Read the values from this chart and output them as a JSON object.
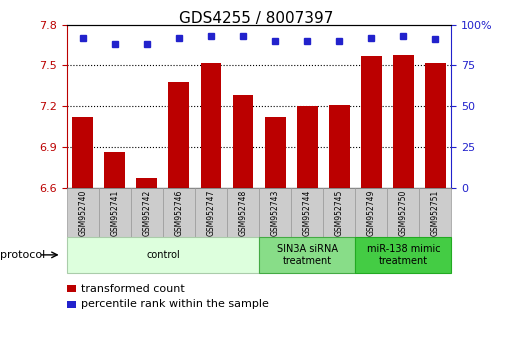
{
  "title": "GDS4255 / 8007397",
  "samples": [
    "GSM952740",
    "GSM952741",
    "GSM952742",
    "GSM952746",
    "GSM952747",
    "GSM952748",
    "GSM952743",
    "GSM952744",
    "GSM952745",
    "GSM952749",
    "GSM952750",
    "GSM952751"
  ],
  "transformed_count": [
    7.12,
    6.86,
    6.67,
    7.38,
    7.52,
    7.28,
    7.12,
    7.2,
    7.21,
    7.57,
    7.58,
    7.52
  ],
  "percentile_rank": [
    92,
    88,
    88,
    92,
    93,
    93,
    90,
    90,
    90,
    92,
    93,
    91
  ],
  "ylim_left": [
    6.6,
    7.8
  ],
  "ylim_right": [
    0,
    100
  ],
  "yticks_left": [
    6.6,
    6.9,
    7.2,
    7.5,
    7.8
  ],
  "yticks_right": [
    0,
    25,
    50,
    75,
    100
  ],
  "bar_color": "#bb0000",
  "dot_color": "#2222cc",
  "groups": [
    {
      "label": "control",
      "start": 0,
      "end": 6,
      "color": "#ddffdd",
      "edge_color": "#aaccaa"
    },
    {
      "label": "SIN3A siRNA\ntreatment",
      "start": 6,
      "end": 9,
      "color": "#88dd88",
      "edge_color": "#44aa44"
    },
    {
      "label": "miR-138 mimic\ntreatment",
      "start": 9,
      "end": 12,
      "color": "#44cc44",
      "edge_color": "#22aa22"
    }
  ],
  "protocol_label": "protocol",
  "legend_items": [
    {
      "label": "transformed count",
      "color": "#bb0000"
    },
    {
      "label": "percentile rank within the sample",
      "color": "#2222cc"
    }
  ],
  "grid_yticks": [
    6.9,
    7.2,
    7.5
  ],
  "bar_width": 0.65,
  "background_color": "#ffffff",
  "title_fontsize": 11,
  "tick_fontsize": 8,
  "sample_box_color": "#cccccc",
  "sample_box_edge": "#999999"
}
